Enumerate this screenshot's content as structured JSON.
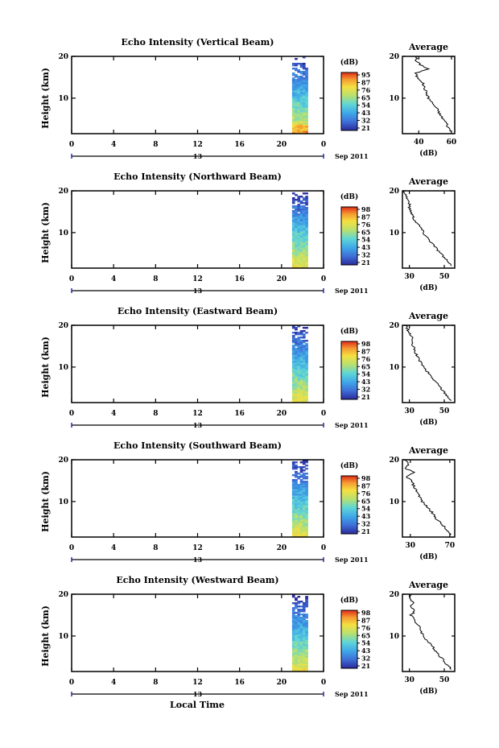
{
  "figure": {
    "xlabel": "Local Time",
    "date_label": "Sep 2011",
    "day_label": "13",
    "cbar_unit": "(dB)",
    "avg_title": "Average",
    "avg_xlabel": "(dB)"
  },
  "chart_data": [
    {
      "type": "heatmap",
      "title": "Echo Intensity (Vertical Beam)",
      "ylabel": "Height (km)",
      "x_ticks": [
        "0",
        "4",
        "8",
        "12",
        "16",
        "20",
        "0"
      ],
      "xlim": [
        0,
        24
      ],
      "y_ticks": [
        "20",
        "10"
      ],
      "ylim": [
        1.5,
        20
      ],
      "data_time_range": [
        21,
        22.5
      ],
      "colorbar": {
        "label": "(dB)",
        "ticks": [
          "95",
          "87",
          "76",
          "65",
          "54",
          "43",
          "32",
          "21"
        ],
        "range": [
          21,
          95
        ]
      },
      "average": {
        "title": "Average",
        "xlabel": "(dB)",
        "x_ticks": [
          "40",
          "60"
        ],
        "xlim": [
          30,
          62
        ],
        "y_ticks": [
          "20",
          "10"
        ],
        "profile": [
          [
            20,
            39
          ],
          [
            19,
            38
          ],
          [
            18,
            41
          ],
          [
            17,
            46
          ],
          [
            16,
            38
          ],
          [
            15,
            39
          ],
          [
            14,
            42
          ],
          [
            13,
            43
          ],
          [
            12,
            44
          ],
          [
            11,
            45
          ],
          [
            10,
            46
          ],
          [
            9,
            48
          ],
          [
            8,
            50
          ],
          [
            7,
            52
          ],
          [
            6,
            53
          ],
          [
            5,
            55
          ],
          [
            4,
            57
          ],
          [
            3,
            58
          ],
          [
            2,
            60
          ]
        ]
      }
    },
    {
      "type": "heatmap",
      "title": "Echo Intensity (Northward Beam)",
      "ylabel": "Height (km)",
      "x_ticks": [
        "0",
        "4",
        "8",
        "12",
        "16",
        "20",
        "0"
      ],
      "xlim": [
        0,
        24
      ],
      "y_ticks": [
        "20",
        "10"
      ],
      "ylim": [
        1.5,
        20
      ],
      "data_time_range": [
        21,
        22.5
      ],
      "colorbar": {
        "label": "(dB)",
        "ticks": [
          "98",
          "87",
          "76",
          "65",
          "54",
          "43",
          "32",
          "21"
        ],
        "range": [
          21,
          98
        ]
      },
      "average": {
        "title": "Average",
        "xlabel": "(dB)",
        "x_ticks": [
          "30",
          "50"
        ],
        "xlim": [
          26,
          56
        ],
        "y_ticks": [
          "20",
          "10"
        ],
        "profile": [
          [
            20,
            27
          ],
          [
            19,
            28
          ],
          [
            18,
            29
          ],
          [
            17,
            30
          ],
          [
            16,
            30
          ],
          [
            15,
            31
          ],
          [
            14,
            32
          ],
          [
            13,
            33
          ],
          [
            12,
            35
          ],
          [
            11,
            37
          ],
          [
            10,
            38
          ],
          [
            9,
            40
          ],
          [
            8,
            42
          ],
          [
            7,
            44
          ],
          [
            6,
            46
          ],
          [
            5,
            48
          ],
          [
            4,
            50
          ],
          [
            3,
            52
          ],
          [
            2,
            54
          ]
        ]
      }
    },
    {
      "type": "heatmap",
      "title": "Echo Intensity (Eastward Beam)",
      "ylabel": "Height (km)",
      "x_ticks": [
        "0",
        "4",
        "8",
        "12",
        "16",
        "20",
        "0"
      ],
      "xlim": [
        0,
        24
      ],
      "y_ticks": [
        "20",
        "10"
      ],
      "ylim": [
        1.5,
        20
      ],
      "data_time_range": [
        21,
        22.5
      ],
      "colorbar": {
        "label": "(dB)",
        "ticks": [
          "98",
          "87",
          "76",
          "65",
          "54",
          "43",
          "32",
          "21"
        ],
        "range": [
          21,
          98
        ]
      },
      "average": {
        "title": "Average",
        "xlabel": "(dB)",
        "x_ticks": [
          "30",
          "50"
        ],
        "xlim": [
          26,
          56
        ],
        "y_ticks": [
          "20",
          "10"
        ],
        "profile": [
          [
            20,
            28
          ],
          [
            19,
            29
          ],
          [
            18,
            30
          ],
          [
            17,
            32
          ],
          [
            16,
            31
          ],
          [
            15,
            32
          ],
          [
            14,
            33
          ],
          [
            13,
            34
          ],
          [
            12,
            35
          ],
          [
            11,
            37
          ],
          [
            10,
            38
          ],
          [
            9,
            40
          ],
          [
            8,
            42
          ],
          [
            7,
            44
          ],
          [
            6,
            46
          ],
          [
            5,
            48
          ],
          [
            4,
            50
          ],
          [
            3,
            52
          ],
          [
            2,
            54
          ]
        ]
      }
    },
    {
      "type": "heatmap",
      "title": "Echo Intensity (Southward Beam)",
      "ylabel": "Height (km)",
      "x_ticks": [
        "0",
        "4",
        "8",
        "12",
        "16",
        "20",
        "0"
      ],
      "xlim": [
        0,
        24
      ],
      "y_ticks": [
        "20",
        "10"
      ],
      "ylim": [
        1.5,
        20
      ],
      "data_time_range": [
        21,
        22.5
      ],
      "colorbar": {
        "label": "(dB)",
        "ticks": [
          "98",
          "87",
          "76",
          "65",
          "54",
          "43",
          "32",
          "21"
        ],
        "range": [
          21,
          98
        ]
      },
      "average": {
        "title": "Average",
        "xlabel": "(dB)",
        "x_ticks": [
          "30",
          "70"
        ],
        "xlim": [
          22,
          75
        ],
        "y_ticks": [
          "20",
          "10"
        ],
        "profile": [
          [
            20,
            24
          ],
          [
            19,
            28
          ],
          [
            18,
            25
          ],
          [
            17,
            33
          ],
          [
            16,
            26
          ],
          [
            15,
            31
          ],
          [
            14,
            33
          ],
          [
            13,
            35
          ],
          [
            12,
            38
          ],
          [
            11,
            40
          ],
          [
            10,
            42
          ],
          [
            9,
            46
          ],
          [
            8,
            50
          ],
          [
            7,
            53
          ],
          [
            6,
            56
          ],
          [
            5,
            60
          ],
          [
            4,
            64
          ],
          [
            3,
            67
          ],
          [
            2,
            71
          ]
        ]
      }
    },
    {
      "type": "heatmap",
      "title": "Echo Intensity (Westward Beam)",
      "ylabel": "Height (km)",
      "x_ticks": [
        "0",
        "4",
        "8",
        "12",
        "16",
        "20",
        "0"
      ],
      "xlim": [
        0,
        24
      ],
      "y_ticks": [
        "20",
        "10"
      ],
      "ylim": [
        1.5,
        20
      ],
      "data_time_range": [
        21,
        22.5
      ],
      "colorbar": {
        "label": "(dB)",
        "ticks": [
          "98",
          "87",
          "76",
          "65",
          "54",
          "43",
          "32",
          "21"
        ],
        "range": [
          21,
          98
        ]
      },
      "average": {
        "title": "Average",
        "xlabel": "(dB)",
        "x_ticks": [
          "30",
          "50"
        ],
        "xlim": [
          26,
          56
        ],
        "y_ticks": [
          "20",
          "10"
        ],
        "profile": [
          [
            20,
            31
          ],
          [
            19,
            30
          ],
          [
            18,
            32
          ],
          [
            17,
            31
          ],
          [
            16,
            33
          ],
          [
            15,
            31
          ],
          [
            14,
            33
          ],
          [
            13,
            34
          ],
          [
            12,
            36
          ],
          [
            11,
            37
          ],
          [
            10,
            38
          ],
          [
            9,
            40
          ],
          [
            8,
            42
          ],
          [
            7,
            44
          ],
          [
            6,
            46
          ],
          [
            5,
            48
          ],
          [
            4,
            50
          ],
          [
            3,
            52
          ],
          [
            2,
            54
          ]
        ]
      }
    }
  ]
}
